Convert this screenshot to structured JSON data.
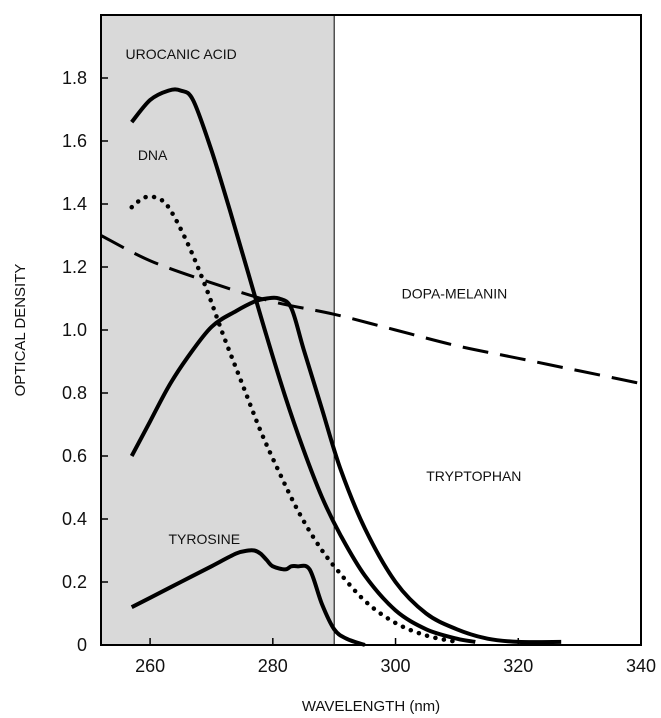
{
  "chart_data": {
    "type": "line",
    "xlabel": "WAVELENGTH (nm)",
    "ylabel": "OPTICAL DENSITY",
    "xlim": [
      252,
      340
    ],
    "ylim": [
      0,
      2.0
    ],
    "x_ticks": [
      260,
      280,
      300,
      320,
      340
    ],
    "y_ticks": [
      0,
      0.2,
      0.4,
      0.6,
      0.8,
      1.0,
      1.2,
      1.4,
      1.6,
      1.8
    ],
    "y_tick_labels": [
      "0",
      "0.2",
      "0.4",
      "0.6",
      "0.8",
      "1.0",
      "1.2",
      "1.4",
      "1.6",
      "1.8"
    ],
    "shaded_region": {
      "x_start": 252,
      "x_end": 290,
      "color": "#d9d9d9"
    },
    "series": [
      {
        "name": "UROCANIC ACID",
        "style": "solid",
        "x": [
          257,
          260,
          263,
          265,
          267,
          270,
          273,
          276,
          279,
          282,
          285,
          288,
          291,
          295,
          300,
          305,
          310,
          313
        ],
        "y": [
          1.66,
          1.73,
          1.76,
          1.76,
          1.73,
          1.57,
          1.38,
          1.18,
          0.98,
          0.79,
          0.62,
          0.47,
          0.35,
          0.22,
          0.11,
          0.05,
          0.02,
          0.01
        ]
      },
      {
        "name": "DNA",
        "style": "dotted",
        "x": [
          257,
          259,
          261,
          263,
          266,
          269,
          272,
          275,
          278,
          281,
          284,
          287,
          290,
          295,
          300,
          305,
          310
        ],
        "y": [
          1.39,
          1.42,
          1.42,
          1.39,
          1.28,
          1.14,
          0.98,
          0.83,
          0.68,
          0.55,
          0.43,
          0.33,
          0.25,
          0.14,
          0.07,
          0.03,
          0.01
        ]
      },
      {
        "name": "DOPA-MELANIN",
        "style": "dashed",
        "x": [
          252,
          260,
          270,
          280,
          290,
          300,
          310,
          320,
          330,
          340
        ],
        "y": [
          1.3,
          1.22,
          1.15,
          1.09,
          1.05,
          1.0,
          0.95,
          0.91,
          0.87,
          0.83
        ]
      },
      {
        "name": "TRYPTOPHAN",
        "style": "solid",
        "x": [
          257,
          260,
          263,
          266,
          270,
          274,
          277,
          279,
          281,
          283,
          285,
          288,
          291,
          295,
          300,
          305,
          310,
          315,
          320,
          327
        ],
        "y": [
          0.6,
          0.71,
          0.82,
          0.91,
          1.01,
          1.06,
          1.09,
          1.1,
          1.1,
          1.07,
          0.94,
          0.75,
          0.56,
          0.37,
          0.2,
          0.1,
          0.05,
          0.02,
          0.01,
          0.01
        ]
      },
      {
        "name": "TYROSINE",
        "style": "solid",
        "x": [
          257,
          260,
          265,
          270,
          274,
          276,
          277,
          278,
          279,
          280,
          282,
          283,
          284,
          286,
          288,
          290,
          292,
          295
        ],
        "y": [
          0.12,
          0.15,
          0.2,
          0.25,
          0.29,
          0.3,
          0.3,
          0.29,
          0.27,
          0.25,
          0.24,
          0.25,
          0.25,
          0.24,
          0.13,
          0.05,
          0.02,
          0.0
        ]
      }
    ],
    "labels": [
      {
        "text": "UROCANIC ACID",
        "x": 256,
        "y": 1.86
      },
      {
        "text": "DNA",
        "x": 258,
        "y": 1.54
      },
      {
        "text": "DOPA-MELANIN",
        "x": 301,
        "y": 1.1
      },
      {
        "text": "TRYPTOPHAN",
        "x": 305,
        "y": 0.52
      },
      {
        "text": "TYROSINE",
        "x": 263,
        "y": 0.32
      }
    ]
  }
}
